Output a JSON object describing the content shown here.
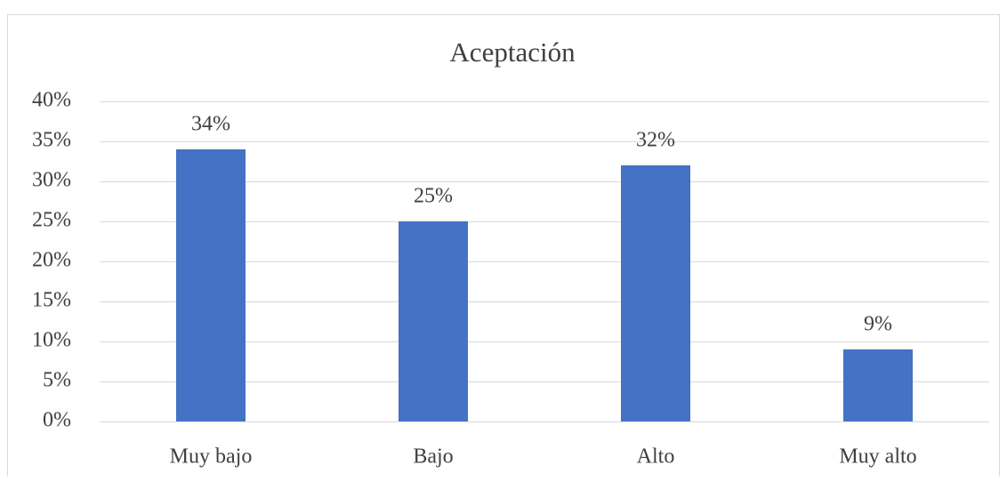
{
  "chart_data": {
    "type": "bar",
    "title": "Aceptación",
    "categories": [
      "Muy bajo",
      "Bajo",
      "Alto",
      "Muy alto"
    ],
    "values": [
      34,
      25,
      32,
      9
    ],
    "value_labels": [
      "34%",
      "25%",
      "32%",
      "9%"
    ],
    "color": "#4472c4",
    "ylim": [
      0,
      40
    ],
    "yticks": [
      {
        "value": 0,
        "label": "0%"
      },
      {
        "value": 5,
        "label": "5%"
      },
      {
        "value": 10,
        "label": "10%"
      },
      {
        "value": 15,
        "label": "15%"
      },
      {
        "value": 20,
        "label": "20%"
      },
      {
        "value": 25,
        "label": "25%"
      },
      {
        "value": 30,
        "label": "30%"
      },
      {
        "value": 35,
        "label": "35%"
      },
      {
        "value": 40,
        "label": "40%"
      }
    ],
    "grid": true
  }
}
